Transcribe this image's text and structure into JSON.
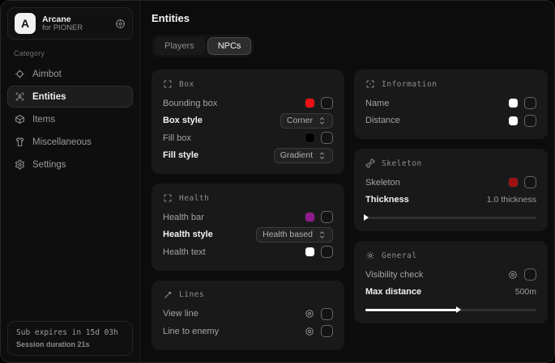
{
  "app": {
    "name": "Arcane",
    "subtitle": "for PIONER",
    "logo_letter": "A"
  },
  "sidebar": {
    "category_label": "Category",
    "items": [
      {
        "label": "Aimbot"
      },
      {
        "label": "Entities"
      },
      {
        "label": "Items"
      },
      {
        "label": "Miscellaneous"
      },
      {
        "label": "Settings"
      }
    ],
    "footer": {
      "sub_expires": "Sub expires in 15d 03h",
      "session_duration": "Session duration 21s"
    }
  },
  "main": {
    "title": "Entities",
    "tabs": [
      {
        "label": "Players"
      },
      {
        "label": "NPCs"
      }
    ],
    "cards": {
      "box": {
        "title": "Box",
        "rows": [
          {
            "label": "Bounding box"
          },
          {
            "label": "Box style",
            "value": "Corner"
          },
          {
            "label": "Fill box"
          },
          {
            "label": "Fill style",
            "value": "Gradient"
          }
        ]
      },
      "health": {
        "title": "Health",
        "rows": [
          {
            "label": "Health bar"
          },
          {
            "label": "Health style",
            "value": "Health based"
          },
          {
            "label": "Health text"
          }
        ]
      },
      "lines": {
        "title": "Lines",
        "rows": [
          {
            "label": "View line"
          },
          {
            "label": "Line to enemy"
          }
        ]
      },
      "information": {
        "title": "Information",
        "rows": [
          {
            "label": "Name"
          },
          {
            "label": "Distance"
          }
        ]
      },
      "skeleton": {
        "title": "Skeleton",
        "rows": [
          {
            "label": "Skeleton"
          },
          {
            "label": "Thickness",
            "value": "1.0 thickness"
          }
        ],
        "slider_percent": 1
      },
      "general": {
        "title": "General",
        "rows": [
          {
            "label": "Visibility check"
          },
          {
            "label": "Max distance",
            "value": "500m"
          }
        ],
        "slider_percent": 55
      }
    }
  },
  "colors": {
    "bounding_box_swatch": "#ea1212",
    "fill_box_swatch": "#000000",
    "health_bar_swatch": "#8f1b8f",
    "health_text_swatch": "#ffffff",
    "name_swatch": "#ffffff",
    "distance_swatch": "#ffffff",
    "skeleton_swatch": "#9c1212"
  }
}
